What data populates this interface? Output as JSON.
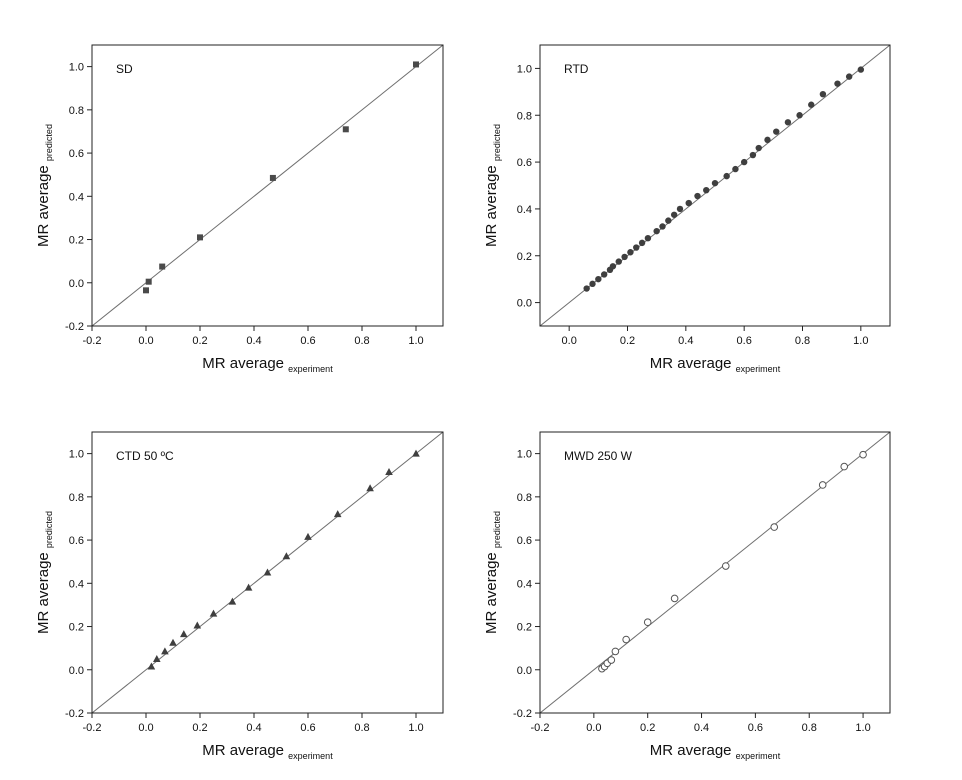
{
  "chart_data": [
    {
      "type": "scatter",
      "title": "SD",
      "marker": "square",
      "xlabel": "MR average",
      "xlabel_sub": "experiment",
      "ylabel": "MR average",
      "ylabel_sub": "predicted",
      "xlim": [
        -0.2,
        1.1
      ],
      "ylim": [
        -0.2,
        1.1
      ],
      "xticks": [
        -0.2,
        0.0,
        0.2,
        0.4,
        0.6,
        0.8,
        1.0
      ],
      "yticks": [
        -0.2,
        0.0,
        0.2,
        0.4,
        0.6,
        0.8,
        1.0
      ],
      "reference_line": "y = x",
      "x": [
        0.0,
        0.01,
        0.06,
        0.2,
        0.47,
        0.74,
        1.0
      ],
      "y": [
        -0.035,
        0.005,
        0.075,
        0.21,
        0.485,
        0.71,
        1.01
      ]
    },
    {
      "type": "scatter",
      "title": "RTD",
      "marker": "circle",
      "xlabel": "MR average",
      "xlabel_sub": "experiment",
      "ylabel": "MR average",
      "ylabel_sub": "predicted",
      "xlim": [
        -0.1,
        1.1
      ],
      "ylim": [
        -0.1,
        1.1
      ],
      "xticks": [
        0.0,
        0.2,
        0.4,
        0.6,
        0.8,
        1.0
      ],
      "yticks": [
        0.0,
        0.2,
        0.4,
        0.6,
        0.8,
        1.0
      ],
      "reference_line": "y = x",
      "x": [
        0.06,
        0.08,
        0.1,
        0.12,
        0.14,
        0.15,
        0.17,
        0.19,
        0.21,
        0.23,
        0.25,
        0.27,
        0.3,
        0.32,
        0.34,
        0.36,
        0.38,
        0.41,
        0.44,
        0.47,
        0.5,
        0.54,
        0.57,
        0.6,
        0.63,
        0.65,
        0.68,
        0.71,
        0.75,
        0.79,
        0.83,
        0.87,
        0.92,
        0.96,
        1.0
      ],
      "y": [
        0.06,
        0.08,
        0.1,
        0.12,
        0.14,
        0.155,
        0.175,
        0.195,
        0.215,
        0.235,
        0.255,
        0.275,
        0.305,
        0.325,
        0.35,
        0.375,
        0.4,
        0.425,
        0.455,
        0.48,
        0.51,
        0.54,
        0.57,
        0.6,
        0.63,
        0.66,
        0.695,
        0.73,
        0.77,
        0.8,
        0.845,
        0.89,
        0.935,
        0.965,
        0.995
      ]
    },
    {
      "type": "scatter",
      "title": "CTD 50 ºC",
      "marker": "triangle",
      "xlabel": "MR average",
      "xlabel_sub": "experiment",
      "ylabel": "MR average",
      "ylabel_sub": "predicted",
      "xlim": [
        -0.2,
        1.1
      ],
      "ylim": [
        -0.2,
        1.1
      ],
      "xticks": [
        -0.2,
        0.0,
        0.2,
        0.4,
        0.6,
        0.8,
        1.0
      ],
      "yticks": [
        -0.2,
        0.0,
        0.2,
        0.4,
        0.6,
        0.8,
        1.0
      ],
      "reference_line": "y = x",
      "x": [
        0.02,
        0.04,
        0.07,
        0.1,
        0.14,
        0.19,
        0.25,
        0.32,
        0.38,
        0.45,
        0.52,
        0.6,
        0.71,
        0.83,
        0.9,
        1.0
      ],
      "y": [
        0.015,
        0.05,
        0.085,
        0.125,
        0.165,
        0.205,
        0.26,
        0.315,
        0.38,
        0.45,
        0.525,
        0.615,
        0.72,
        0.84,
        0.915,
        1.0
      ]
    },
    {
      "type": "scatter",
      "title": "MWD 250 W",
      "marker": "open-circle",
      "xlabel": "MR average",
      "xlabel_sub": "experiment",
      "ylabel": "MR average",
      "ylabel_sub": "predicted",
      "xlim": [
        -0.2,
        1.1
      ],
      "ylim": [
        -0.2,
        1.1
      ],
      "xticks": [
        -0.2,
        0.0,
        0.2,
        0.4,
        0.6,
        0.8,
        1.0
      ],
      "yticks": [
        -0.2,
        0.0,
        0.2,
        0.4,
        0.6,
        0.8,
        1.0
      ],
      "reference_line": "y = x",
      "x": [
        0.03,
        0.04,
        0.05,
        0.065,
        0.08,
        0.12,
        0.2,
        0.3,
        0.49,
        0.67,
        0.85,
        0.93,
        1.0
      ],
      "y": [
        0.005,
        0.015,
        0.03,
        0.045,
        0.085,
        0.14,
        0.22,
        0.33,
        0.48,
        0.66,
        0.855,
        0.94,
        0.995
      ]
    }
  ]
}
